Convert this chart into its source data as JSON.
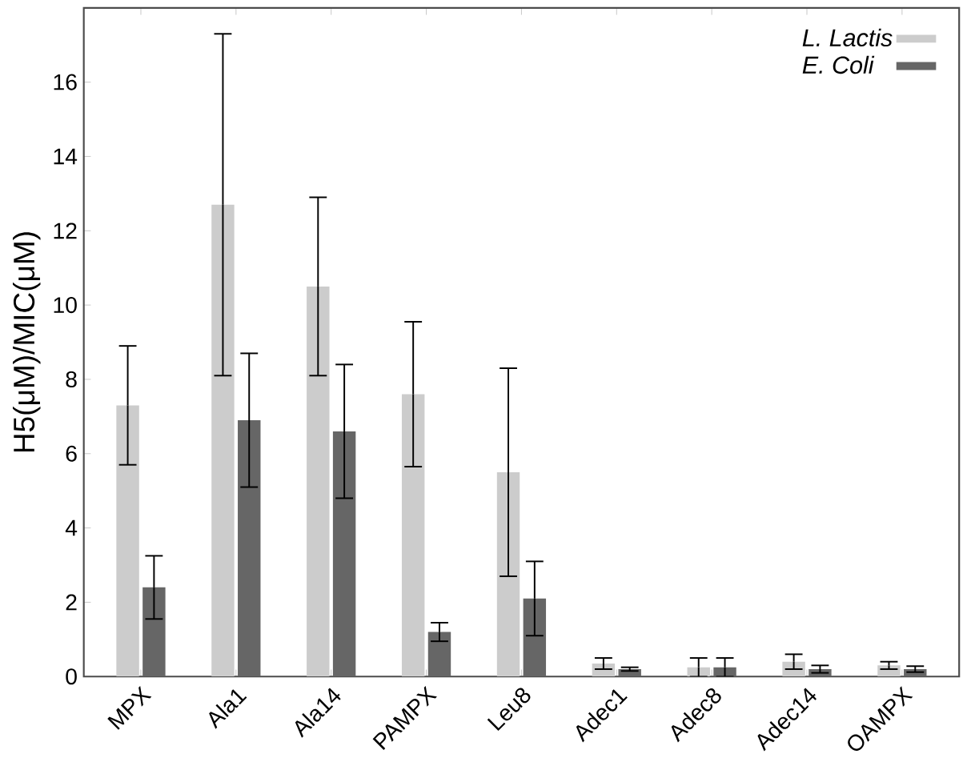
{
  "chart_data": {
    "type": "bar",
    "ylabel": "H5(μM)/MIC(μM)",
    "categories": [
      "MPX",
      "Ala1",
      "Ala14",
      "PAMPX",
      "Leu8",
      "Adec1",
      "Adec8",
      "Adec14",
      "OAMPX"
    ],
    "series": [
      {
        "name": "L. Lactis",
        "color": "#cccccc",
        "values": [
          7.3,
          12.7,
          10.5,
          7.6,
          5.5,
          0.35,
          0.25,
          0.4,
          0.3
        ],
        "errors": [
          1.6,
          4.6,
          2.4,
          1.95,
          2.8,
          0.15,
          0.25,
          0.2,
          0.1
        ]
      },
      {
        "name": "E. Coli",
        "color": "#666666",
        "values": [
          2.4,
          6.9,
          6.6,
          1.2,
          2.1,
          0.2,
          0.25,
          0.2,
          0.2
        ],
        "errors": [
          0.85,
          1.8,
          1.8,
          0.25,
          1.0,
          0.05,
          0.25,
          0.1,
          0.08
        ]
      }
    ],
    "ylim": [
      0,
      18
    ],
    "yticks": [
      0,
      2,
      4,
      6,
      8,
      10,
      12,
      14,
      16
    ],
    "grid": false,
    "legend": "top right"
  }
}
